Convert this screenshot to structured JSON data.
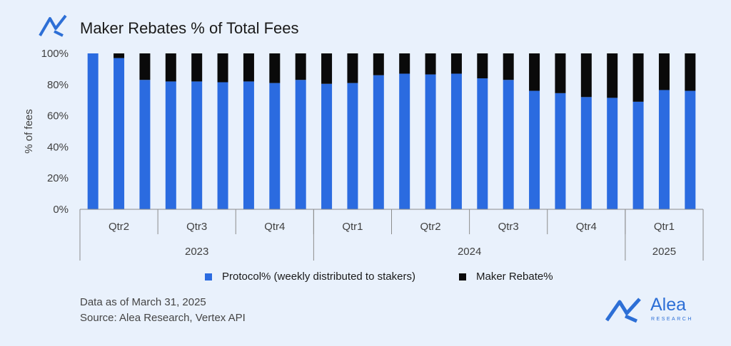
{
  "title": "Maker Rebates % of Total Fees",
  "colors": {
    "protocol": "#2b6be0",
    "rebate": "#0a0a0a",
    "accent": "#2d6fd6"
  },
  "chart_data": {
    "type": "bar",
    "stacked": true,
    "ylabel": "% of fees",
    "ylim": [
      0,
      100
    ],
    "yticks": [
      "0%",
      "20%",
      "40%",
      "60%",
      "80%",
      "100%"
    ],
    "legend_position": "bottom",
    "quarter_groups": [
      {
        "label": "Qtr2",
        "count": 3
      },
      {
        "label": "Qtr3",
        "count": 3
      },
      {
        "label": "Qtr4",
        "count": 3
      },
      {
        "label": "Qtr1",
        "count": 3
      },
      {
        "label": "Qtr2",
        "count": 3
      },
      {
        "label": "Qtr3",
        "count": 3
      },
      {
        "label": "Qtr4",
        "count": 3
      },
      {
        "label": "Qtr1",
        "count": 3
      }
    ],
    "year_groups": [
      {
        "label": "2023",
        "count": 9
      },
      {
        "label": "2024",
        "count": 12
      },
      {
        "label": "2025",
        "count": 3
      }
    ],
    "series": [
      {
        "name": "Protocol% (weekly distributed to stakers)",
        "values": [
          100,
          97,
          83,
          82,
          82,
          81.5,
          82,
          81,
          83,
          80.5,
          81,
          86,
          87,
          86.5,
          87,
          84,
          83,
          76,
          74.5,
          72,
          71.5,
          69,
          76.5,
          76
        ]
      },
      {
        "name": "Maker Rebate%",
        "values": [
          0,
          3,
          17,
          18,
          18,
          18.5,
          18,
          19,
          17,
          19.5,
          19,
          14,
          13,
          13.5,
          13,
          16,
          17,
          24,
          25.5,
          28,
          28.5,
          31,
          23.5,
          24
        ]
      }
    ]
  },
  "footnote": {
    "line1": "Data as of March 31, 2025",
    "line2": "Source: Alea Research, Vertex API"
  },
  "brand": {
    "name": "Alea",
    "sub": "RESEARCH"
  }
}
